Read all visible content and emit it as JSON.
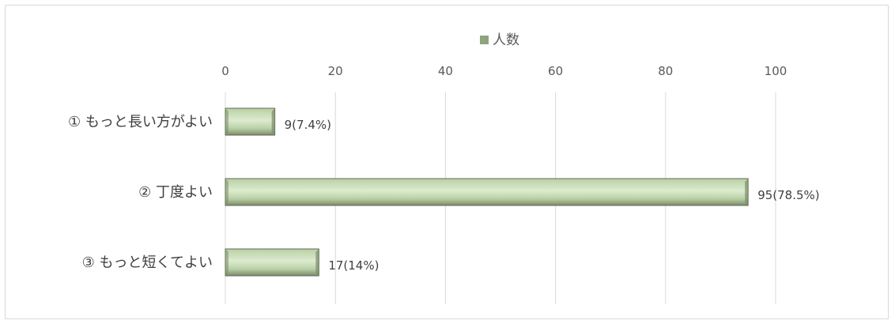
{
  "chart_data": {
    "type": "bar",
    "orientation": "horizontal",
    "categories": [
      "① もっと長い方がよい",
      "② 丁度よい",
      "③ もっと短くてよい"
    ],
    "series": [
      {
        "name": "人数",
        "values": [
          9,
          95,
          17
        ],
        "data_labels": [
          "9(7.4%)",
          "95(78.5%)",
          "17(14%)"
        ]
      }
    ],
    "xlim": [
      0,
      100
    ],
    "x_ticks": [
      0,
      20,
      40,
      60,
      80,
      100
    ],
    "tick_labels": [
      "0",
      "20",
      "40",
      "60",
      "80",
      "100"
    ],
    "grid": true,
    "legend_position": "top",
    "colors": {
      "bar_light": "#dcebcf",
      "bar_mid": "#b9d0a5",
      "bar_dark": "#7b8a6a",
      "bar_edge": "#5f6b53",
      "gridline": "#d9d9d9",
      "legend_marker": "#8ea47c"
    }
  }
}
